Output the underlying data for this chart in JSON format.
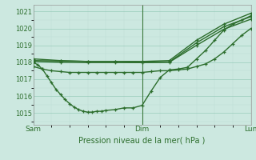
{
  "bg_color": "#cce8e0",
  "grid_color_major": "#99ccbb",
  "grid_color_minor": "#bbddd4",
  "line_color": "#2d6e2d",
  "xlabel": "Pression niveau de la mer( hPa )",
  "ylim": [
    1014.3,
    1021.4
  ],
  "yticks": [
    1015,
    1016,
    1017,
    1018,
    1019,
    1020,
    1021
  ],
  "xtick_labels": [
    "Sam",
    "Dim",
    "Lun"
  ],
  "xtick_pos": [
    0,
    24,
    48
  ],
  "vline_pos": [
    24,
    48
  ],
  "series1_x": [
    0,
    1,
    2,
    3,
    4,
    5,
    6,
    7,
    8,
    9,
    10,
    11,
    12,
    13,
    14,
    15,
    16,
    18,
    20,
    22,
    24,
    26,
    28,
    30,
    32,
    34,
    36,
    38,
    40,
    42,
    44,
    46,
    48
  ],
  "series1_y": [
    1018.0,
    1017.85,
    1017.6,
    1017.2,
    1016.8,
    1016.4,
    1016.1,
    1015.8,
    1015.55,
    1015.35,
    1015.2,
    1015.1,
    1015.05,
    1015.05,
    1015.1,
    1015.1,
    1015.15,
    1015.2,
    1015.3,
    1015.3,
    1015.45,
    1016.3,
    1017.1,
    1017.55,
    1017.6,
    1017.7,
    1018.2,
    1018.7,
    1019.3,
    1019.9,
    1020.25,
    1020.5,
    1020.75
  ],
  "series2_x": [
    0,
    2,
    4,
    6,
    8,
    10,
    12,
    14,
    16,
    18,
    20,
    22,
    24,
    26,
    28,
    30,
    32,
    34,
    36,
    38,
    40,
    42,
    44,
    46,
    48
  ],
  "series2_y": [
    1017.75,
    1017.6,
    1017.5,
    1017.45,
    1017.4,
    1017.4,
    1017.4,
    1017.4,
    1017.4,
    1017.4,
    1017.4,
    1017.4,
    1017.4,
    1017.45,
    1017.5,
    1017.5,
    1017.55,
    1017.6,
    1017.75,
    1017.9,
    1018.2,
    1018.6,
    1019.1,
    1019.6,
    1020.0
  ],
  "series3_x": [
    0,
    6,
    12,
    18,
    24,
    30,
    36,
    42,
    48
  ],
  "series3_y": [
    1018.2,
    1018.1,
    1018.05,
    1018.05,
    1018.05,
    1018.1,
    1019.3,
    1020.25,
    1020.9
  ],
  "series4_x": [
    0,
    6,
    12,
    18,
    24,
    30,
    36,
    42,
    48
  ],
  "series4_y": [
    1018.05,
    1018.0,
    1017.98,
    1017.98,
    1017.98,
    1018.0,
    1019.0,
    1019.95,
    1020.55
  ],
  "series5_x": [
    0,
    6,
    12,
    18,
    24,
    30,
    36,
    42,
    48
  ],
  "series5_y": [
    1018.1,
    1018.08,
    1018.05,
    1018.05,
    1018.0,
    1018.02,
    1019.15,
    1020.1,
    1020.7
  ]
}
